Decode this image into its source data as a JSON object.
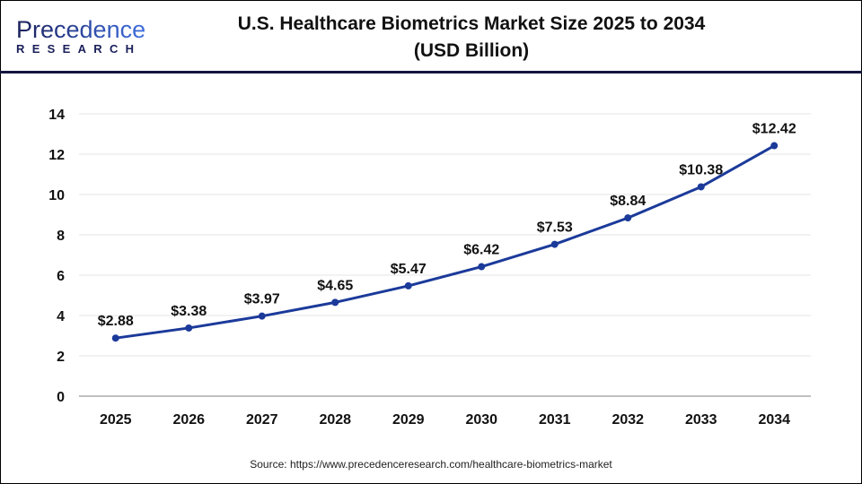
{
  "logo": {
    "text_main": "Precedence",
    "text_sub": "RESEARCH"
  },
  "title_line1": "U.S. Healthcare Biometrics Market Size 2025 to 2034",
  "title_line2": "(USD Billion)",
  "source": "Source: https://www.precedenceresearch.com/healthcare-biometrics-market",
  "colors": {
    "line": "#1b3a9a",
    "header_rule": "#14163f",
    "grid": "#e6e6e6",
    "axis": "#bfbfbf"
  },
  "chart_data": {
    "type": "line",
    "title": "U.S. Healthcare Biometrics Market Size 2025 to 2034 (USD Billion)",
    "xlabel": "",
    "ylabel": "",
    "categories": [
      "2025",
      "2026",
      "2027",
      "2028",
      "2029",
      "2030",
      "2031",
      "2032",
      "2033",
      "2034"
    ],
    "values": [
      2.88,
      3.38,
      3.97,
      4.65,
      5.47,
      6.42,
      7.53,
      8.84,
      10.38,
      12.42
    ],
    "data_labels": [
      "$2.88",
      "$3.38",
      "$3.97",
      "$4.65",
      "$5.47",
      "$6.42",
      "$7.53",
      "$8.84",
      "$10.38",
      "$12.42"
    ],
    "ylim": [
      0,
      14
    ],
    "yticks": [
      0,
      2,
      4,
      6,
      8,
      10,
      12,
      14
    ],
    "grid": true,
    "legend": "none"
  }
}
